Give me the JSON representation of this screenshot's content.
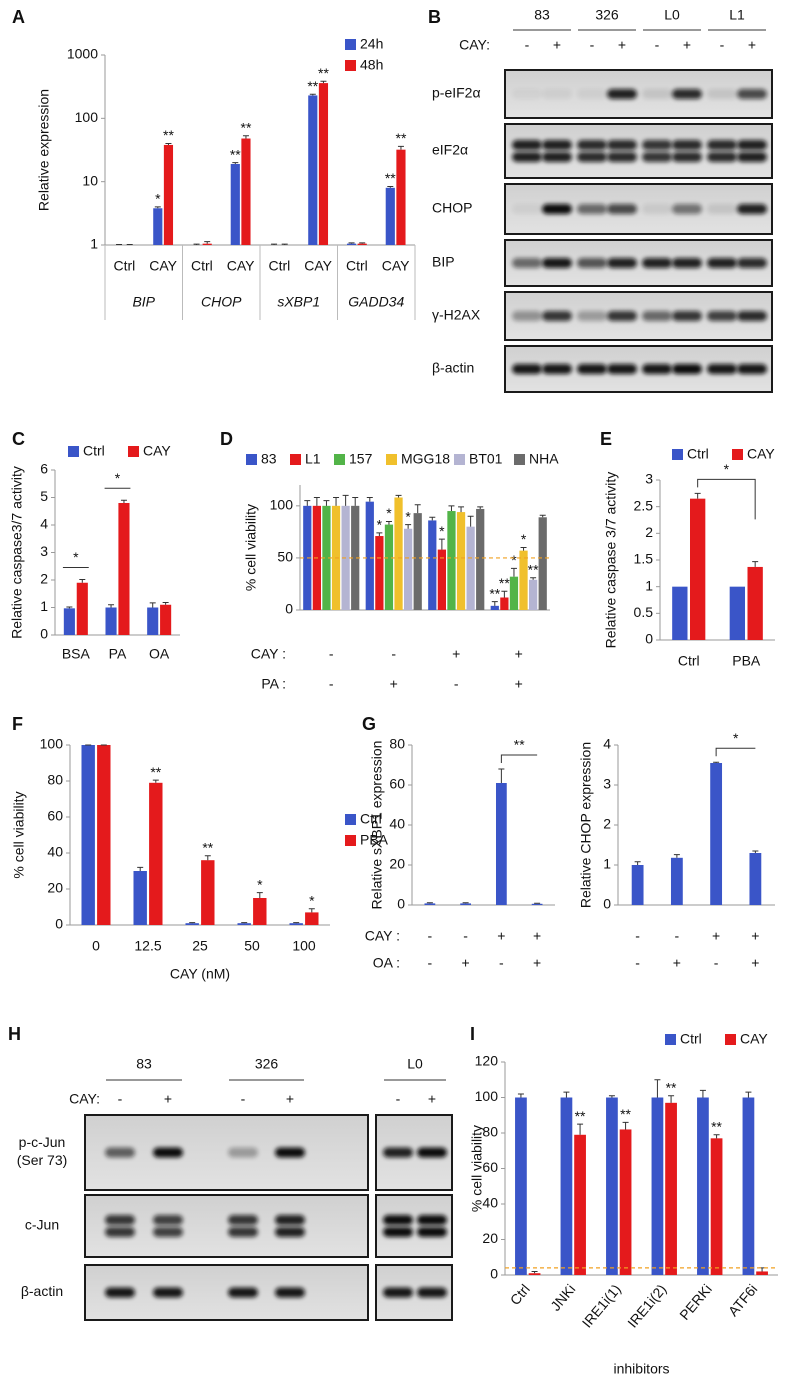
{
  "chart_data": [
    {
      "panel": "A",
      "type": "bar",
      "ylabel": "Relative expression",
      "log_scale": true,
      "ylim": [
        1,
        1000
      ],
      "yticks": [
        1,
        10,
        100,
        1000
      ],
      "legend": "top-right",
      "categories": [
        "Ctrl",
        "CAY",
        "Ctrl",
        "CAY",
        "Ctrl",
        "CAY",
        "Ctrl",
        "CAY"
      ],
      "groups": [
        "BIP",
        "CHOP",
        "sXBP1",
        "GADD34"
      ],
      "series": [
        {
          "name": "24h",
          "color": "#3a55c8",
          "values": [
            1,
            3.8,
            1,
            19,
            1,
            230,
            1.05,
            8
          ],
          "errors": [
            0.02,
            0.2,
            0.03,
            1,
            0.03,
            10,
            0.03,
            0.4
          ],
          "significance": [
            null,
            "*",
            null,
            "**",
            null,
            "**",
            null,
            "**"
          ]
        },
        {
          "name": "48h",
          "color": "#e41a1c",
          "values": [
            1,
            38,
            1.05,
            48,
            1,
            360,
            1.05,
            32
          ],
          "errors": [
            0.02,
            2,
            0.08,
            5,
            0.03,
            25,
            0.03,
            4
          ],
          "significance": [
            null,
            "**",
            null,
            "**",
            null,
            "**",
            null,
            "**"
          ]
        }
      ]
    },
    {
      "panel": "C",
      "type": "bar",
      "ylabel": "Relative caspase3/7 activity",
      "ylim": [
        0,
        6
      ],
      "yticks": [
        0,
        1,
        2,
        3,
        4,
        5,
        6
      ],
      "legend": "top",
      "categories": [
        "BSA",
        "PA",
        "OA"
      ],
      "group_significance": [
        "*",
        "*",
        null
      ],
      "series": [
        {
          "name": "Ctrl",
          "color": "#3a55c8",
          "values": [
            0.97,
            1,
            1
          ],
          "errors": [
            0.05,
            0.1,
            0.17
          ]
        },
        {
          "name": "CAY",
          "color": "#e41a1c",
          "values": [
            1.9,
            4.8,
            1.1
          ],
          "errors": [
            0.12,
            0.1,
            0.08
          ]
        }
      ]
    },
    {
      "panel": "D",
      "type": "bar",
      "ylabel": "% cell viability",
      "ylim": [
        0,
        120
      ],
      "yticks": [
        0,
        50,
        100
      ],
      "legend": "top",
      "reference_line": 50,
      "categories": [
        null,
        null,
        null,
        null
      ],
      "x_rows": [
        {
          "label": "CAY :",
          "values": [
            "-",
            "-",
            "+",
            "+"
          ]
        },
        {
          "label": "PA :",
          "values": [
            "-",
            "+",
            "-",
            "+"
          ]
        }
      ],
      "series": [
        {
          "name": "83",
          "color": "#3a55c8",
          "values": [
            100,
            104,
            86,
            4
          ],
          "errors": [
            5,
            4,
            3,
            4
          ],
          "significance": [
            null,
            null,
            null,
            "**"
          ]
        },
        {
          "name": "L1",
          "color": "#e41a1c",
          "values": [
            100,
            71,
            58,
            12
          ],
          "errors": [
            8,
            3,
            10,
            6
          ],
          "significance": [
            null,
            "*",
            "*",
            "**"
          ]
        },
        {
          "name": "157",
          "color": "#52b448",
          "values": [
            100,
            82,
            95,
            32
          ],
          "errors": [
            5,
            3,
            5,
            8
          ],
          "significance": [
            null,
            "*",
            null,
            "*"
          ]
        },
        {
          "name": "MGG18",
          "color": "#f0c02c",
          "values": [
            100,
            108,
            94,
            57
          ],
          "errors": [
            8,
            2,
            5,
            3
          ],
          "significance": [
            null,
            null,
            null,
            "*"
          ]
        },
        {
          "name": "BT01",
          "color": "#b4b4d2",
          "values": [
            100,
            78,
            80,
            29
          ],
          "errors": [
            10,
            4,
            10,
            2
          ],
          "significance": [
            null,
            "*",
            null,
            "**"
          ]
        },
        {
          "name": "NHA",
          "color": "#6b6b6b",
          "values": [
            100,
            93,
            97,
            89
          ],
          "errors": [
            8,
            8,
            2,
            2
          ],
          "significance": [
            null,
            null,
            null,
            null
          ]
        }
      ]
    },
    {
      "panel": "E",
      "type": "bar",
      "ylabel": "Relative caspase 3/7 activity",
      "ylim": [
        0,
        3
      ],
      "yticks": [
        0,
        0.5,
        1,
        1.5,
        2,
        2.5,
        3
      ],
      "legend": "top",
      "categories": [
        "Ctrl",
        "PBA"
      ],
      "bracket_label": "*",
      "series": [
        {
          "name": "Ctrl",
          "color": "#3a55c8",
          "values": [
            1,
            1
          ]
        },
        {
          "name": "CAY",
          "color": "#e41a1c",
          "values": [
            2.65,
            1.37
          ],
          "errors": [
            0.1,
            0.1
          ]
        }
      ]
    },
    {
      "panel": "F",
      "type": "bar",
      "ylabel": "% cell viability",
      "xlabel": "CAY (nM)",
      "ylim": [
        0,
        100
      ],
      "yticks": [
        0,
        20,
        40,
        60,
        80,
        100
      ],
      "legend": "right",
      "categories": [
        "0",
        "12.5",
        "25",
        "50",
        "100"
      ],
      "series": [
        {
          "name": "Ctrl",
          "color": "#3a55c8",
          "values": [
            100,
            30,
            1,
            1,
            1
          ],
          "errors": [
            0,
            2,
            0.3,
            0.3,
            0.3
          ]
        },
        {
          "name": "PBA",
          "color": "#e41a1c",
          "values": [
            100,
            79,
            36,
            15,
            7
          ],
          "errors": [
            0,
            1.5,
            2.5,
            3,
            2
          ],
          "significance": [
            null,
            "**",
            "**",
            "*",
            "*"
          ]
        }
      ]
    },
    {
      "panel": "G",
      "type": "bar",
      "ylabel": "Relative sXBP1 expression",
      "ylim": [
        0,
        80
      ],
      "yticks": [
        0,
        20,
        40,
        60,
        80
      ],
      "bracket_label": "**",
      "categories": [
        null,
        null,
        null,
        null
      ],
      "x_rows": [
        {
          "label": "CAY :",
          "values": [
            "-",
            "-",
            "+",
            "+"
          ]
        },
        {
          "label": "OA :",
          "values": [
            "-",
            "+",
            "-",
            "+"
          ]
        }
      ],
      "series": [
        {
          "color": "#3a55c8",
          "values": [
            0.8,
            0.8,
            61,
            0.6
          ],
          "errors": [
            0.3,
            0.3,
            7,
            0.3
          ]
        }
      ]
    },
    {
      "type": "bar",
      "ylabel": "Relative CHOP expression",
      "ylim": [
        0,
        4
      ],
      "yticks": [
        0,
        1,
        2,
        3,
        4
      ],
      "bracket_label": "*",
      "categories": [
        null,
        null,
        null,
        null
      ],
      "x_rows": [
        {
          "label": null,
          "values": [
            "-",
            "-",
            "+",
            "+"
          ]
        },
        {
          "label": null,
          "values": [
            "-",
            "+",
            "-",
            "+"
          ]
        }
      ],
      "series": [
        {
          "color": "#3a55c8",
          "values": [
            1,
            1.18,
            3.55,
            1.3
          ],
          "errors": [
            0.08,
            0.08,
            0.02,
            0.05
          ]
        }
      ]
    },
    {
      "panel": "I",
      "type": "bar",
      "ylabel": "% cell viability",
      "xlabel": "inhibitors",
      "ylim": [
        0,
        120
      ],
      "yticks": [
        0,
        20,
        40,
        60,
        80,
        100,
        120
      ],
      "legend": "top",
      "reference_line": 4,
      "rotate_labels": true,
      "categories": [
        "Ctrl",
        "JNKi",
        "IRE1i(1)",
        "IRE1i(2)",
        "PERKi",
        "ATF6i"
      ],
      "series": [
        {
          "name": "Ctrl",
          "color": "#3a55c8",
          "values": [
            100,
            100,
            100,
            100,
            100,
            100
          ],
          "errors": [
            2,
            3,
            1,
            10,
            4,
            3
          ]
        },
        {
          "name": "CAY",
          "color": "#e41a1c",
          "values": [
            1,
            79,
            82,
            97,
            77,
            2
          ],
          "errors": [
            1,
            6,
            4,
            4,
            2,
            2
          ],
          "significance": [
            null,
            "**",
            "**",
            "**",
            "**",
            null
          ]
        }
      ]
    }
  ],
  "blots": [
    {
      "panel": "B",
      "groups": [
        "83",
        "326",
        "L0",
        "L1"
      ],
      "lane_row_label": "CAY:",
      "lanes": [
        "-",
        "+",
        "-",
        "+",
        "-",
        "+",
        "-",
        "+"
      ],
      "rows": [
        [
          "p-eIF2α"
        ],
        [
          "eIF2α"
        ],
        [
          "CHOP"
        ],
        [
          "BIP"
        ],
        [
          "γ-H2AX"
        ],
        [
          "β-actin"
        ]
      ]
    },
    {
      "panel": "H",
      "groups": [
        "83",
        "326",
        "L0"
      ],
      "lane_row_label": "CAY:",
      "lanes": [
        "-",
        "+",
        "-",
        "+",
        "-",
        "+"
      ],
      "rows": [
        [
          "p-c-Jun",
          "(Ser 73)"
        ],
        [
          "c-Jun"
        ],
        [
          "β-actin"
        ]
      ]
    }
  ]
}
